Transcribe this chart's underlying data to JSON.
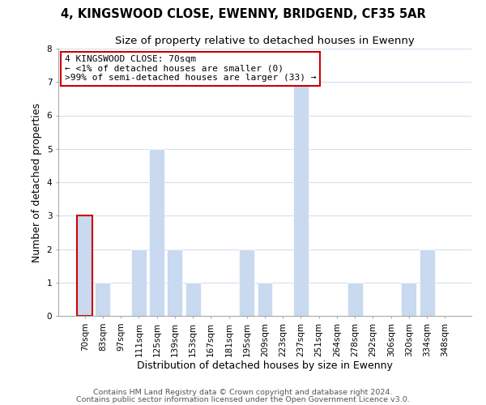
{
  "title": "4, KINGSWOOD CLOSE, EWENNY, BRIDGEND, CF35 5AR",
  "subtitle": "Size of property relative to detached houses in Ewenny",
  "xlabel": "Distribution of detached houses by size in Ewenny",
  "ylabel": "Number of detached properties",
  "bar_labels": [
    "70sqm",
    "83sqm",
    "97sqm",
    "111sqm",
    "125sqm",
    "139sqm",
    "153sqm",
    "167sqm",
    "181sqm",
    "195sqm",
    "209sqm",
    "223sqm",
    "237sqm",
    "251sqm",
    "264sqm",
    "278sqm",
    "292sqm",
    "306sqm",
    "320sqm",
    "334sqm",
    "348sqm"
  ],
  "bar_values": [
    3,
    1,
    0,
    2,
    5,
    2,
    1,
    0,
    0,
    2,
    1,
    0,
    7,
    0,
    0,
    1,
    0,
    0,
    1,
    2,
    0
  ],
  "bar_color": "#c8d9f0",
  "bar_edge_color": "#ffffff",
  "highlight_index": 0,
  "highlight_edge_color": "#cc0000",
  "ylim": [
    0,
    8
  ],
  "yticks": [
    0,
    1,
    2,
    3,
    4,
    5,
    6,
    7,
    8
  ],
  "annotation_title": "4 KINGSWOOD CLOSE: 70sqm",
  "annotation_line1": "← <1% of detached houses are smaller (0)",
  "annotation_line2": ">99% of semi-detached houses are larger (33) →",
  "annotation_box_edge": "#cc0000",
  "footer_line1": "Contains HM Land Registry data © Crown copyright and database right 2024.",
  "footer_line2": "Contains public sector information licensed under the Open Government Licence v3.0.",
  "background_color": "#ffffff",
  "grid_color": "#d0dff0",
  "title_fontsize": 10.5,
  "subtitle_fontsize": 9.5,
  "axis_label_fontsize": 9,
  "tick_fontsize": 7.5,
  "annotation_fontsize": 8,
  "footer_fontsize": 6.8
}
